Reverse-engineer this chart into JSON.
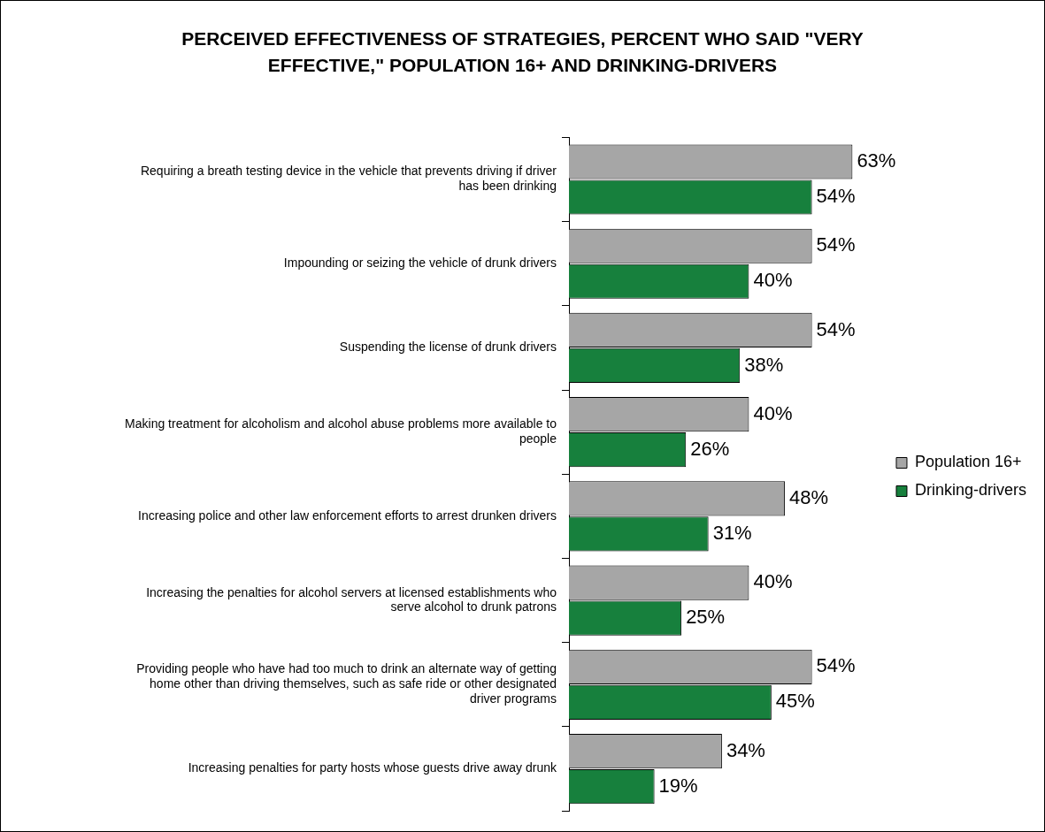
{
  "chart_data": {
    "type": "bar",
    "orientation": "horizontal",
    "title": "PERCEIVED EFFECTIVENESS OF STRATEGIES, PERCENT WHO SAID \"VERY EFFECTIVE,\" POPULATION 16+ AND DRINKING-DRIVERS",
    "categories": [
      "Requiring a breath testing device in the vehicle that prevents driving if driver has been drinking",
      "Impounding or seizing the vehicle of drunk drivers",
      "Suspending the license of drunk drivers",
      "Making treatment for alcoholism and alcohol abuse problems more available to people",
      "Increasing police and other law enforcement efforts to arrest drunken drivers",
      "Increasing the penalties for alcohol servers at licensed establishments who serve alcohol to drunk patrons",
      "Providing people who have had too much to drink an alternate way of getting home other than driving themselves, such as safe ride or other designated driver programs",
      "Increasing penalties for party hosts whose guests drive away drunk"
    ],
    "series": [
      {
        "name": "Population 16+",
        "color": "#a6a6a6",
        "values": [
          63,
          54,
          54,
          40,
          48,
          40,
          54,
          34
        ],
        "value_labels": [
          "63%",
          "54%",
          "54%",
          "40%",
          "48%",
          "40%",
          "54%",
          "34%"
        ]
      },
      {
        "name": "Drinking-drivers",
        "color": "#17803d",
        "values": [
          54,
          40,
          38,
          26,
          31,
          25,
          45,
          19
        ],
        "value_labels": [
          "54%",
          "40%",
          "38%",
          "26%",
          "31%",
          "25%",
          "45%",
          "19%"
        ]
      }
    ],
    "legend": "right",
    "grid": false
  }
}
